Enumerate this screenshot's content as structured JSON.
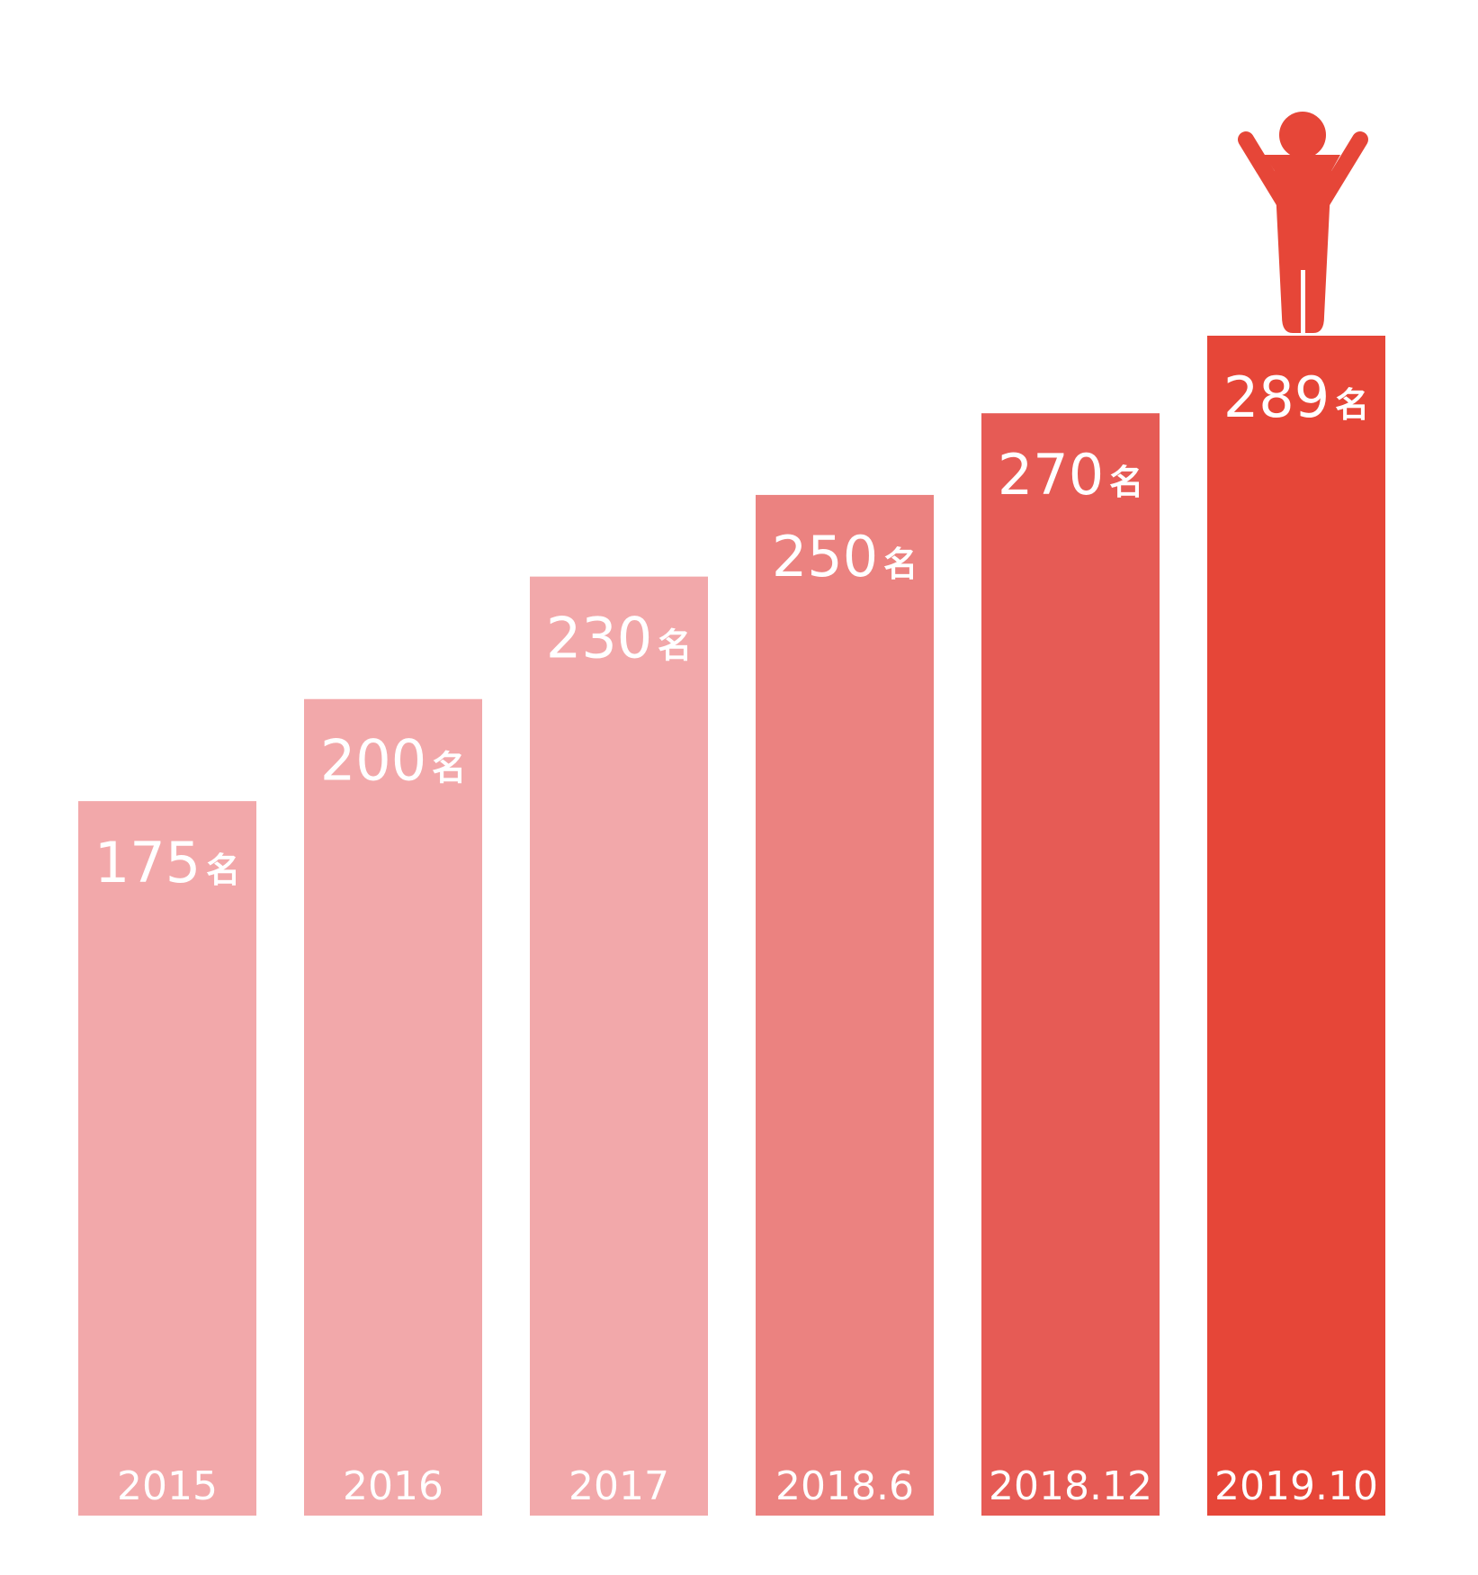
{
  "chart_data": {
    "type": "bar",
    "categories": [
      "2015",
      "2016",
      "2017",
      "2018.6",
      "2018.12",
      "2019.10"
    ],
    "values": [
      175,
      200,
      230,
      250,
      270,
      289
    ],
    "unit": "名",
    "value_labels": [
      "175",
      "200",
      "230",
      "250",
      "270",
      "289"
    ],
    "ylim": [
      0,
      289
    ],
    "grid": false,
    "bar_colors": [
      "#f2a8aa",
      "#f2a8aa",
      "#f2a8aa",
      "#eb8280",
      "#e65b55",
      "#e64638"
    ],
    "highlight_icon": "person-arms-raised-icon",
    "highlight_index": 5
  }
}
